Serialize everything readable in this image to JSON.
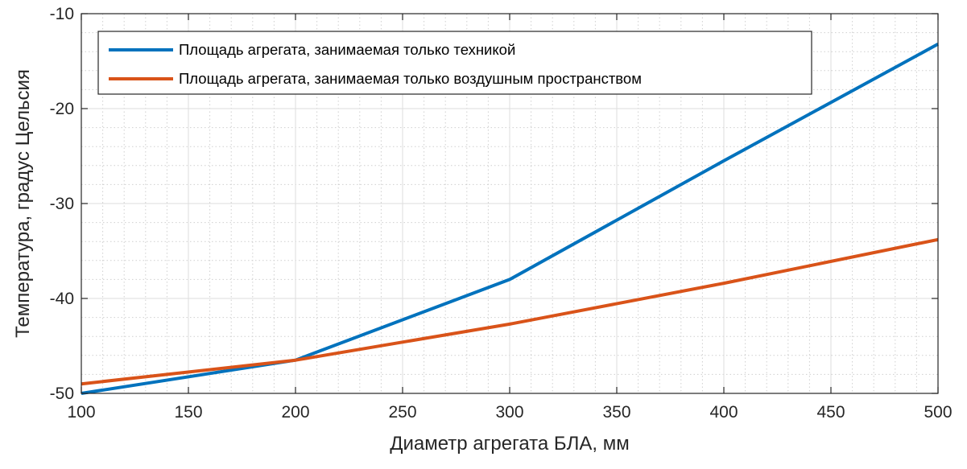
{
  "chart_data": {
    "type": "line",
    "title": "",
    "xlabel": "Диаметр агрегата БЛА, мм",
    "ylabel": "Температура, градус Цельсия",
    "xlim": [
      100,
      500
    ],
    "ylim": [
      -50,
      -10
    ],
    "xticks": [
      100,
      150,
      200,
      250,
      300,
      350,
      400,
      450,
      500
    ],
    "yticks": [
      -50,
      -40,
      -30,
      -20,
      -10
    ],
    "x_minor_step": 10,
    "y_minor_step": 2,
    "grid": true,
    "grid_minor": true,
    "legend_position": "top-left",
    "series": [
      {
        "name": "Площадь агрегата, занимаемая только техникой",
        "color": "#0072BD",
        "x": [
          100,
          200,
          300,
          400,
          500
        ],
        "y": [
          -50,
          -46.5,
          -38,
          -25.5,
          -13.2
        ]
      },
      {
        "name": "Площадь агрегата, занимаемая только воздушным пространством",
        "color": "#D95319",
        "x": [
          100,
          200,
          300,
          400,
          500
        ],
        "y": [
          -49,
          -46.5,
          -42.7,
          -38.4,
          -33.8
        ]
      }
    ]
  }
}
